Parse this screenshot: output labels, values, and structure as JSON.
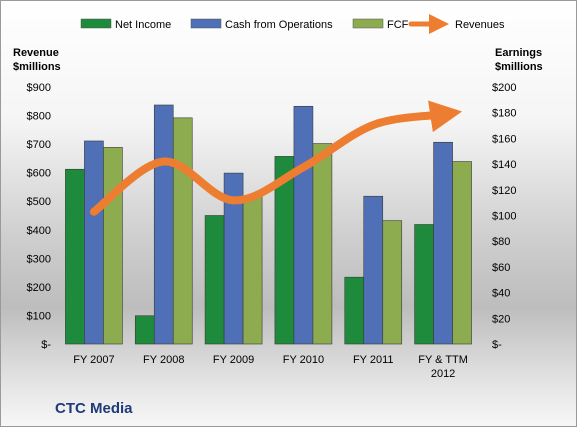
{
  "chart_data": {
    "type": "bar",
    "categories": [
      "FY 2007",
      "FY 2008",
      "FY 2009",
      "FY 2010",
      "FY 2011",
      "FY & TTM 2012"
    ],
    "series": [
      {
        "name": "Net Income",
        "axis": "right",
        "color": "#1e8a3c",
        "values": [
          136,
          22,
          100,
          146,
          52,
          93
        ]
      },
      {
        "name": "Cash from Operations",
        "axis": "right",
        "color": "#4f6fb7",
        "values": [
          158,
          186,
          133,
          185,
          115,
          157
        ]
      },
      {
        "name": "FCF",
        "axis": "right",
        "color": "#8dab4f",
        "values": [
          153,
          176,
          115,
          156,
          96,
          142
        ]
      }
    ],
    "line_series": {
      "name": "Revenues",
      "axis": "left",
      "type": "line",
      "color": "#ed7d31",
      "values": [
        463,
        639,
        503,
        619,
        767,
        804
      ]
    },
    "left_axis": {
      "title_line1": "Revenue",
      "title_line2": "$millions",
      "min": 0,
      "max": 900,
      "step": 100,
      "tick_labels": [
        "$-",
        "$100",
        "$200",
        "$300",
        "$400",
        "$500",
        "$600",
        "$700",
        "$800",
        "$900"
      ]
    },
    "right_axis": {
      "title_line1": "Earnings",
      "title_line2": "$millions",
      "min": 0,
      "max": 200,
      "step": 20,
      "tick_labels": [
        "$-",
        "$20",
        "$40",
        "$60",
        "$80",
        "$100",
        "$120",
        "$140",
        "$160",
        "$180",
        "$200"
      ]
    },
    "legend_position": "top",
    "grid": false,
    "company_label": "CTC Media"
  }
}
